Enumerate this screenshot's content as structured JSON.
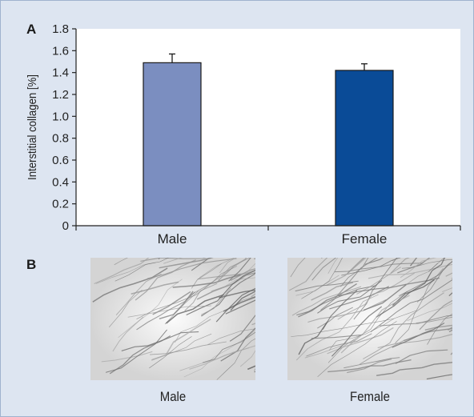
{
  "panel_a": {
    "letter": "A"
  },
  "panel_b": {
    "letter": "B",
    "images": [
      {
        "label": "Male"
      },
      {
        "label": "Female"
      }
    ]
  },
  "colors": {
    "background": "#dde5f1",
    "frame_border": "#9fb2cf",
    "male_bar": "#7b8ec0",
    "female_bar": "#0a4b97",
    "plot_area": "#ffffff"
  },
  "chart_data": {
    "type": "bar",
    "categories": [
      "Male",
      "Female"
    ],
    "values": [
      1.49,
      1.42
    ],
    "error_bars": [
      0.08,
      0.06
    ],
    "ylabel": "Interstitial collagen [%]",
    "xlabel": "",
    "ylim": [
      0,
      1.8
    ],
    "yticks": [
      0,
      0.2,
      0.4,
      0.6,
      0.8,
      1.0,
      1.2,
      1.4,
      1.6,
      1.8
    ],
    "ytick_labels": [
      "0",
      "0.2",
      "0.4",
      "0.6",
      "0.8",
      "1.0",
      "1.2",
      "1.4",
      "1.6",
      "1.8"
    ],
    "grid": false,
    "legend": "none"
  }
}
